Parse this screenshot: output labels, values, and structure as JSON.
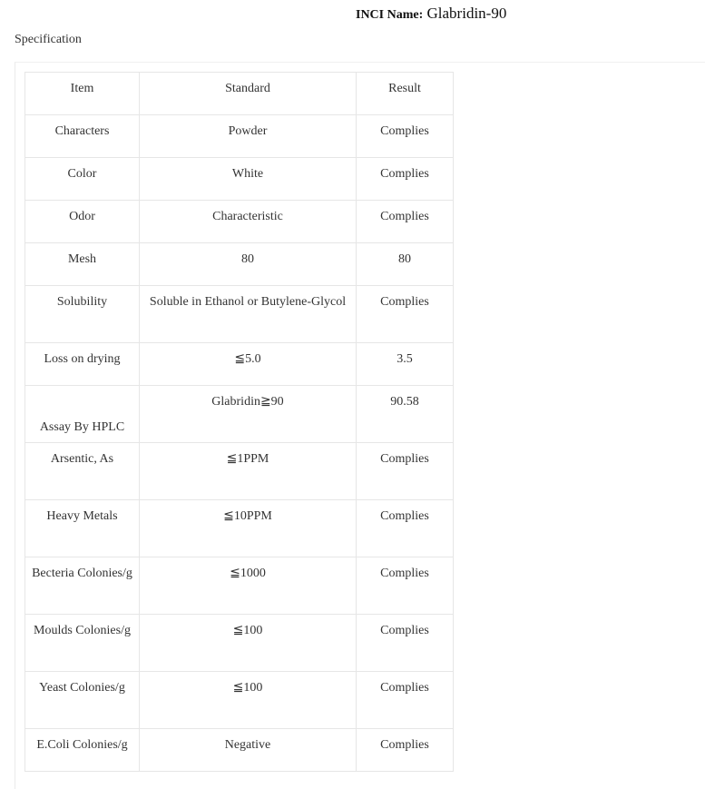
{
  "header": {
    "label": "INCI Name:",
    "value": "Glabridin-90"
  },
  "section_title": "Specification",
  "table": {
    "columns": [
      "Item",
      "Standard",
      "Result"
    ],
    "rows": [
      {
        "item": "Characters",
        "standard": "Powder",
        "result": "Complies",
        "tall": false
      },
      {
        "item": "Color",
        "standard": "White",
        "result": "Complies",
        "tall": false
      },
      {
        "item": "Odor",
        "standard": "Characteristic",
        "result": "Complies",
        "tall": false
      },
      {
        "item": "Mesh",
        "standard": "80",
        "result": "80",
        "tall": false
      },
      {
        "item": "Solubility",
        "standard": "Soluble in Ethanol or Butylene-Glycol",
        "result": "Complies",
        "tall": true
      },
      {
        "item": "Loss on drying",
        "standard": "≦5.0",
        "result": "3.5",
        "tall": false
      },
      {
        "item": "Assay By HPLC",
        "standard": "Glabridin≧90",
        "result": "90.58",
        "tall": true,
        "low": true
      },
      {
        "item": "Arsentic, As",
        "standard": "≦1PPM",
        "result": "Complies",
        "tall": true
      },
      {
        "item": "Heavy Metals",
        "standard": "≦10PPM",
        "result": "Complies",
        "tall": true
      },
      {
        "item": "Becteria Colonies/g",
        "standard": "≦1000",
        "result": "Complies",
        "tall": true
      },
      {
        "item": "Moulds Colonies/g",
        "standard": "≦100",
        "result": "Complies",
        "tall": true
      },
      {
        "item": "Yeast Colonies/g",
        "standard": "≦100",
        "result": "Complies",
        "tall": true
      },
      {
        "item": "E.Coli Colonies/g",
        "standard": "Negative",
        "result": "Complies",
        "tall": false
      }
    ]
  }
}
